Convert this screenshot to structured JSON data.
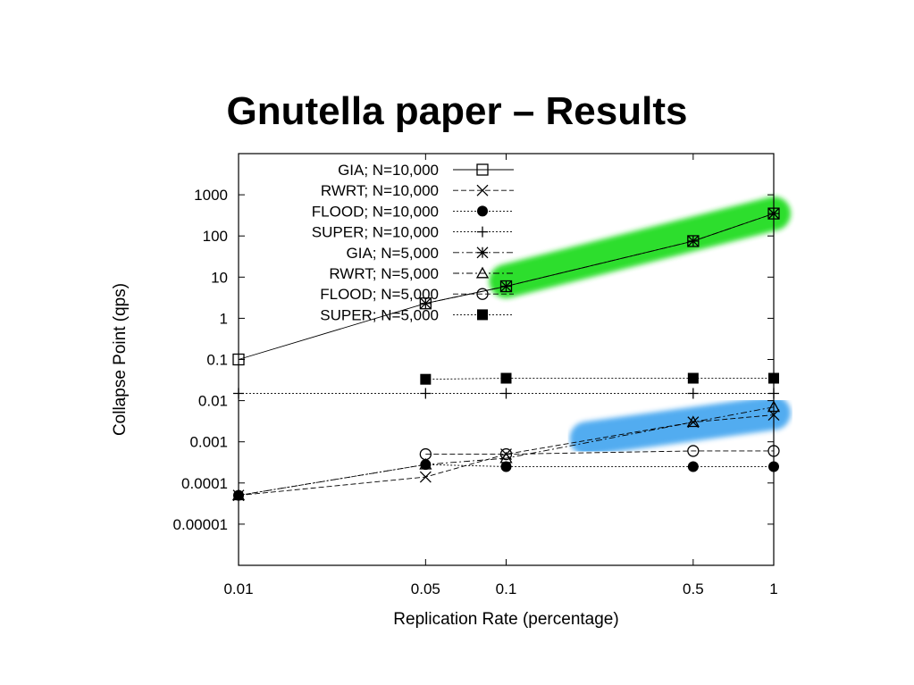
{
  "slide": {
    "title": "Gnutella paper – Results"
  },
  "chart_data": {
    "type": "line",
    "xlabel": "Replication Rate (percentage)",
    "ylabel": "Collapse Point (qps)",
    "x_scale": "log",
    "y_scale": "log",
    "xlim": [
      0.01,
      1
    ],
    "ylim": [
      1e-06,
      10000
    ],
    "x_ticks": [
      0.01,
      0.05,
      0.1,
      0.5,
      1
    ],
    "x_tick_labels": [
      "0.01",
      "0.05",
      "0.1",
      "0.5",
      "1"
    ],
    "y_ticks": [
      1e-05,
      0.0001,
      0.001,
      0.01,
      0.1,
      1,
      10,
      100,
      1000
    ],
    "y_tick_labels": [
      "0.00001",
      "0.0001",
      "0.001",
      "0.01",
      "0.1",
      "1",
      "10",
      "100",
      "1000"
    ],
    "grid": false,
    "legend_position": "top-left",
    "series": [
      {
        "name": "GIA; N=10,000",
        "marker": "square-open",
        "dash": "solid",
        "highlight": "#22dd22",
        "points": [
          [
            0.01,
            0.1
          ],
          [
            0.05,
            2.3
          ],
          [
            0.1,
            6
          ],
          [
            0.5,
            75
          ],
          [
            1,
            350
          ]
        ]
      },
      {
        "name": "RWRT; N=10,000",
        "marker": "x",
        "dash": "dashed",
        "highlight": "#4aa8f0",
        "points": [
          [
            0.01,
            5e-05
          ],
          [
            0.05,
            0.00014
          ],
          [
            0.1,
            0.0005
          ],
          [
            0.5,
            0.003
          ],
          [
            1,
            0.0045
          ]
        ]
      },
      {
        "name": "FLOOD; N=10,000",
        "marker": "circle-filled",
        "dash": "dotted",
        "highlight": "#f0a040",
        "points": [
          [
            0.01,
            5e-05
          ],
          [
            0.05,
            0.00028
          ],
          [
            0.1,
            0.00025
          ],
          [
            0.5,
            0.00025
          ],
          [
            1,
            0.00025
          ]
        ]
      },
      {
        "name": "SUPER; N=10,000",
        "marker": "plus",
        "dash": "dotted",
        "highlight": "#f0f020",
        "points": [
          [
            0.01,
            0.015
          ],
          [
            0.05,
            0.015
          ],
          [
            0.1,
            0.015
          ],
          [
            0.5,
            0.015
          ],
          [
            1,
            0.015
          ]
        ]
      },
      {
        "name": "GIA; N=5,000",
        "marker": "star",
        "dash": "dashdot",
        "highlight": "#22dd22",
        "points": [
          [
            0.05,
            2.3
          ],
          [
            0.1,
            6
          ],
          [
            0.5,
            75
          ],
          [
            1,
            350
          ]
        ]
      },
      {
        "name": "RWRT; N=5,000",
        "marker": "triangle-open",
        "dash": "dashdot",
        "highlight": "#4aa8f0",
        "points": [
          [
            0.01,
            5e-05
          ],
          [
            0.05,
            0.00028
          ],
          [
            0.1,
            0.0004
          ],
          [
            0.5,
            0.003
          ],
          [
            1,
            0.007
          ]
        ]
      },
      {
        "name": "FLOOD; N=5,000",
        "marker": "circle-open",
        "dash": "dashed",
        "highlight": "#f0a040",
        "points": [
          [
            0.05,
            0.0005
          ],
          [
            0.1,
            0.0005
          ],
          [
            0.5,
            0.0006
          ],
          [
            1,
            0.0006
          ]
        ]
      },
      {
        "name": "SUPER; N=5,000",
        "marker": "square-filled",
        "dash": "dotted",
        "highlight": "#f0f020",
        "points": [
          [
            0.05,
            0.033
          ],
          [
            0.1,
            0.035
          ],
          [
            0.5,
            0.035
          ],
          [
            1,
            0.035
          ]
        ]
      }
    ],
    "highlights": [
      {
        "color": "#22dd22",
        "x_from": 0.1,
        "x_to": 1,
        "y_from": 8,
        "y_to": 350
      },
      {
        "color": "#f0f020",
        "x_from": 0.045,
        "x_to": 1,
        "y_from": 0.025,
        "y_to": 0.025
      },
      {
        "color": "#4aa8f0",
        "x_from": 0.2,
        "x_to": 1,
        "y_from": 0.0012,
        "y_to": 0.005
      },
      {
        "color": "#f0a040",
        "x_from": 0.18,
        "x_to": 1,
        "y_from": 0.0004,
        "y_to": 0.0004
      }
    ]
  }
}
